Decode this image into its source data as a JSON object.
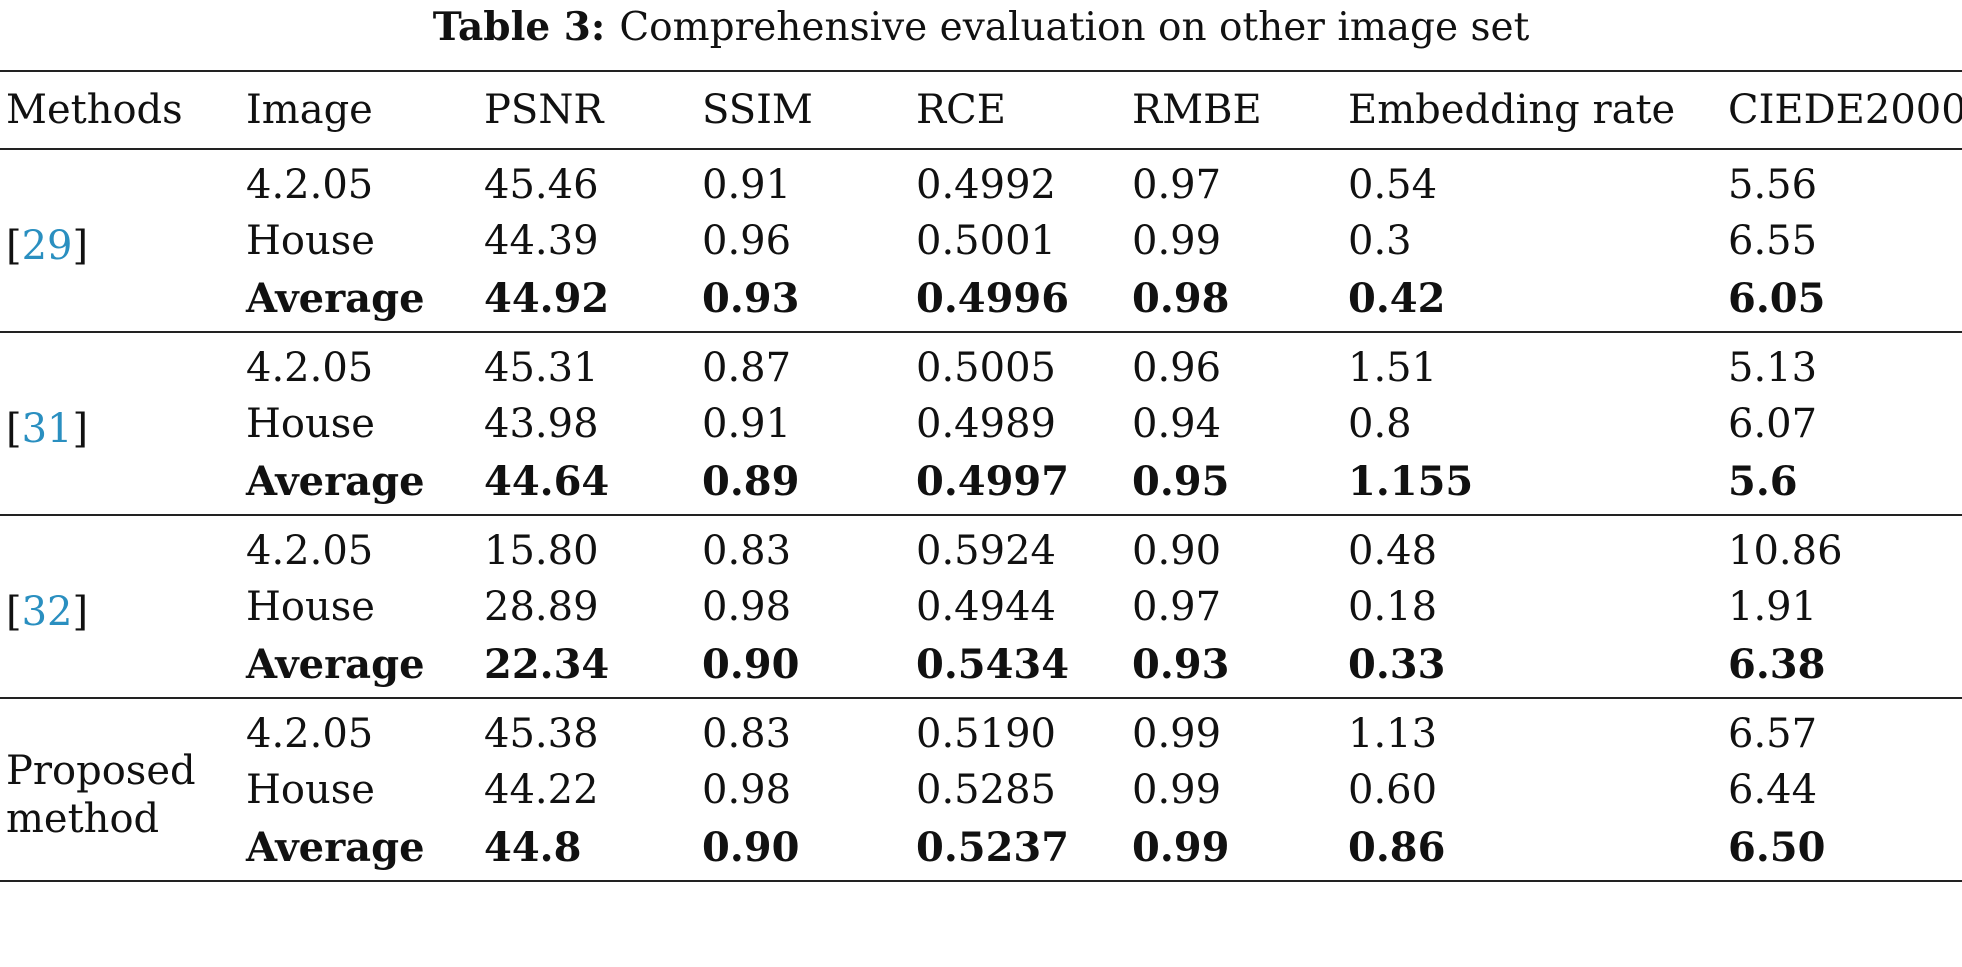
{
  "caption": {
    "label": "Table 3:",
    "text": "Comprehensive evaluation on other image set"
  },
  "headers": [
    "Methods",
    "Image",
    "PSNR",
    "SSIM",
    "RCE",
    "RMBE",
    "Embedding rate",
    "CIEDE2000"
  ],
  "groups": [
    {
      "method_open": "[",
      "method_ref": "29",
      "method_close": "]",
      "rows": [
        [
          "4.2.05",
          "45.46",
          "0.91",
          "0.4992",
          "0.97",
          "0.54",
          "5.56"
        ],
        [
          "House",
          "44.39",
          "0.96",
          "0.5001",
          "0.99",
          "0.3",
          "6.55"
        ],
        [
          "Average",
          "44.92",
          "0.93",
          "0.4996",
          "0.98",
          "0.42",
          "6.05"
        ]
      ]
    },
    {
      "method_open": "[",
      "method_ref": "31",
      "method_close": "]",
      "rows": [
        [
          "4.2.05",
          "45.31",
          "0.87",
          "0.5005",
          "0.96",
          "1.51",
          "5.13"
        ],
        [
          "House",
          "43.98",
          "0.91",
          "0.4989",
          "0.94",
          "0.8",
          "6.07"
        ],
        [
          "Average",
          "44.64",
          "0.89",
          "0.4997",
          "0.95",
          "1.155",
          "5.6"
        ]
      ]
    },
    {
      "method_open": "[",
      "method_ref": "32",
      "method_close": "]",
      "rows": [
        [
          "4.2.05",
          "15.80",
          "0.83",
          "0.5924",
          "0.90",
          "0.48",
          "10.86"
        ],
        [
          "House",
          "28.89",
          "0.98",
          "0.4944",
          "0.97",
          "0.18",
          "1.91"
        ],
        [
          "Average",
          "22.34",
          "0.90",
          "0.5434",
          "0.93",
          "0.33",
          "6.38"
        ]
      ]
    },
    {
      "method_line1": "Proposed",
      "method_line2": "method",
      "rows": [
        [
          "4.2.05",
          "45.38",
          "0.83",
          "0.5190",
          "0.99",
          "1.13",
          "6.57"
        ],
        [
          "House",
          "44.22",
          "0.98",
          "0.5285",
          "0.99",
          "0.60",
          "6.44"
        ],
        [
          "Average",
          "44.8",
          "0.90",
          "0.5237",
          "0.99",
          "0.86",
          "6.50"
        ]
      ]
    }
  ]
}
